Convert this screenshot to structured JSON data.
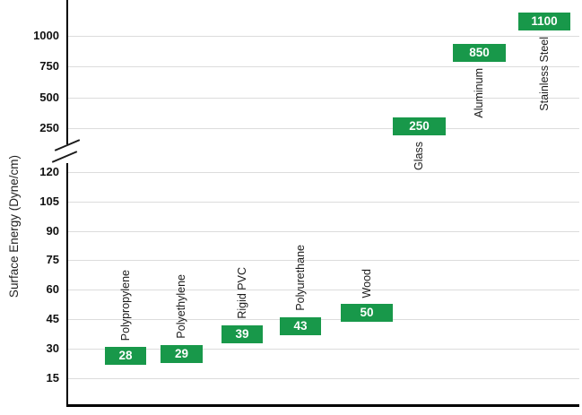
{
  "chart_data": {
    "type": "bar",
    "title": "",
    "xlabel": "",
    "ylabel": "Surface Energy (Dyne/cm)",
    "grid": true,
    "axis_break": true,
    "lower_ticks": [
      15,
      30,
      45,
      60,
      75,
      90,
      105,
      120
    ],
    "upper_ticks": [
      250,
      500,
      750,
      1000
    ],
    "lower_range": [
      15,
      130
    ],
    "upper_range": [
      200,
      1200
    ],
    "bar_color": "#18984a",
    "value_text_color": "#ffffff",
    "gridline_color": "#dcdcdc",
    "categories": [
      "Polypropylene",
      "Polyethylene",
      "Rigid PVC",
      "Polyurethane",
      "Wood",
      "Glass",
      "Aluminum",
      "Stainless Steel"
    ],
    "values": [
      28,
      29,
      39,
      43,
      50,
      250,
      850,
      1100
    ],
    "bars": [
      {
        "label": "Polypropylene",
        "value": 28,
        "label_position": "above"
      },
      {
        "label": "Polyethylene",
        "value": 29,
        "label_position": "above"
      },
      {
        "label": "Rigid PVC",
        "value": 39,
        "label_position": "above"
      },
      {
        "label": "Polyurethane",
        "value": 43,
        "label_position": "above"
      },
      {
        "label": "Wood",
        "value": 50,
        "label_position": "above"
      },
      {
        "label": "Glass",
        "value": 250,
        "label_position": "below"
      },
      {
        "label": "Aluminum",
        "value": 850,
        "label_position": "below"
      },
      {
        "label": "Stainless Steel",
        "value": 1100,
        "label_position": "below"
      }
    ]
  }
}
